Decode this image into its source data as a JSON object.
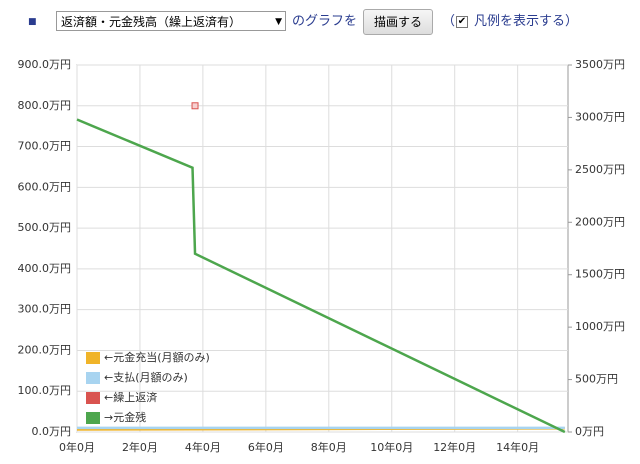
{
  "controls": {
    "select": "返済額・元金残高（繰上返済有）",
    "text": "のグラフを",
    "button": "描画する",
    "paren": "（",
    "checkbox_label": "凡例を表示する）",
    "checked": true
  },
  "chart_data": {
    "type": "line",
    "series": [
      {
        "name": "←元金充当(月額のみ)",
        "color": "#f0b429",
        "axis": "y",
        "x": [
          0,
          15.5
        ],
        "values": [
          6,
          9
        ]
      },
      {
        "name": "←支払(月額のみ)",
        "color": "#a8d4f0",
        "axis": "y",
        "x": [
          0,
          15.5
        ],
        "values": [
          10,
          10
        ]
      },
      {
        "name": "←繰上返済",
        "color": "#d9534f",
        "axis": "y",
        "x": [
          3.75
        ],
        "values": [
          800
        ],
        "marker": true
      },
      {
        "name": "→元金残",
        "color": "#4da64d",
        "axis": "y2",
        "x": [
          0,
          3.67,
          3.75,
          15.5
        ],
        "values": [
          2980,
          2520,
          1700,
          0
        ]
      }
    ],
    "xlim": [
      0,
      15.6
    ],
    "xticks": [
      {
        "value": 0,
        "label": "0年0月"
      },
      {
        "value": 2,
        "label": "2年0月"
      },
      {
        "value": 4,
        "label": "4年0月"
      },
      {
        "value": 6,
        "label": "6年0月"
      },
      {
        "value": 8,
        "label": "8年0月"
      },
      {
        "value": 10,
        "label": "10年0月"
      },
      {
        "value": 12,
        "label": "12年0月"
      },
      {
        "value": 14,
        "label": "14年0月"
      }
    ],
    "ylim": [
      0,
      900
    ],
    "yticks": [
      {
        "value": 0,
        "label": "0.0万円"
      },
      {
        "value": 100,
        "label": "100.0万円"
      },
      {
        "value": 200,
        "label": "200.0万円"
      },
      {
        "value": 300,
        "label": "300.0万円"
      },
      {
        "value": 400,
        "label": "400.0万円"
      },
      {
        "value": 500,
        "label": "500.0万円"
      },
      {
        "value": 600,
        "label": "600.0万円"
      },
      {
        "value": 700,
        "label": "700.0万円"
      },
      {
        "value": 800,
        "label": "800.0万円"
      },
      {
        "value": 900,
        "label": "900.0万円"
      }
    ],
    "y2lim": [
      0,
      3500
    ],
    "y2ticks": [
      {
        "value": 0,
        "label": "0万円"
      },
      {
        "value": 500,
        "label": "500万円"
      },
      {
        "value": 1000,
        "label": "1000万円"
      },
      {
        "value": 1500,
        "label": "1500万円"
      },
      {
        "value": 2000,
        "label": "2000万円"
      },
      {
        "value": 2500,
        "label": "2500万円"
      },
      {
        "value": 3000,
        "label": "3000万円"
      },
      {
        "value": 3500,
        "label": "3500万円"
      }
    ],
    "grid": true,
    "legend": "lower-left"
  }
}
